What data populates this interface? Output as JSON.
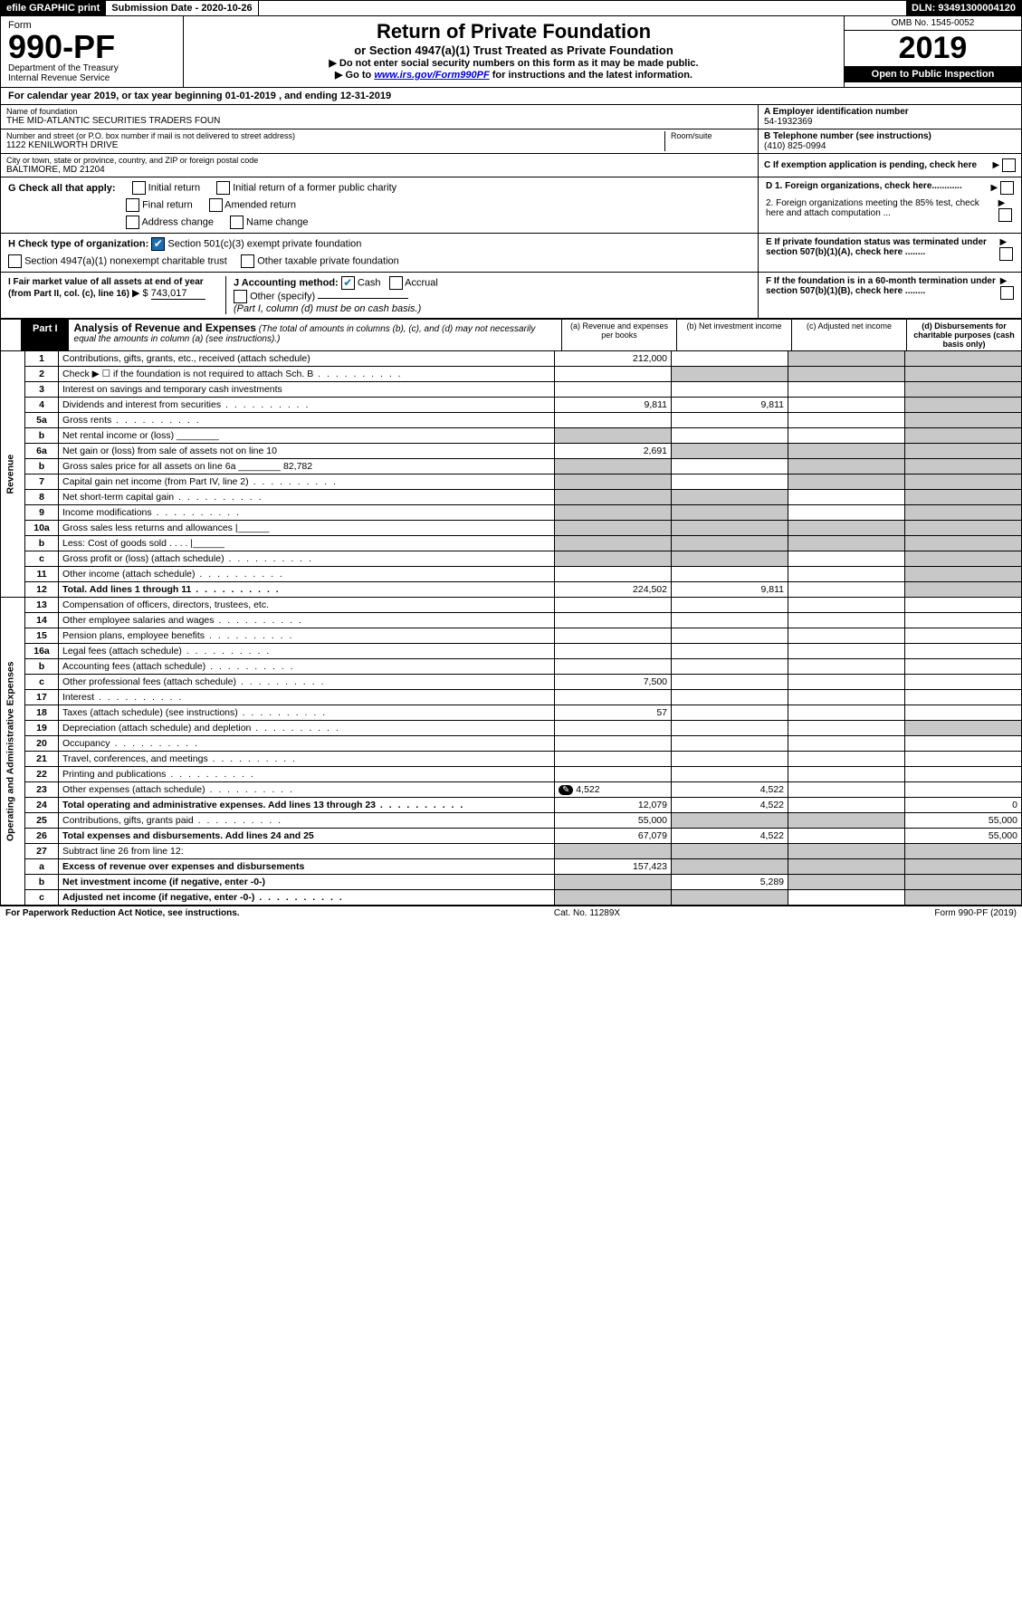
{
  "topbar": {
    "efile": "efile GRAPHIC print",
    "submission_label": "Submission Date - 2020-10-26",
    "dln": "DLN: 93491300004120"
  },
  "header": {
    "form_word": "Form",
    "form_number": "990-PF",
    "dept1": "Department of the Treasury",
    "dept2": "Internal Revenue Service",
    "title": "Return of Private Foundation",
    "subtitle": "or Section 4947(a)(1) Trust Treated as Private Foundation",
    "instr1": "▶ Do not enter social security numbers on this form as it may be made public.",
    "instr2_pre": "▶ Go to ",
    "instr2_link": "www.irs.gov/Form990PF",
    "instr2_post": " for instructions and the latest information.",
    "omb": "OMB No. 1545-0052",
    "year": "2019",
    "open_public": "Open to Public Inspection"
  },
  "calyear": "For calendar year 2019, or tax year beginning 01-01-2019               , and ending 12-31-2019",
  "info": {
    "name_label": "Name of foundation",
    "name": "THE MID-ATLANTIC SECURITIES TRADERS FOUN",
    "ein_label": "A Employer identification number",
    "ein": "54-1932369",
    "addr_label": "Number and street (or P.O. box number if mail is not delivered to street address)",
    "addr": "1122 KENILWORTH DRIVE",
    "room_label": "Room/suite",
    "phone_label": "B Telephone number (see instructions)",
    "phone": "(410) 825-0994",
    "city_label": "City or town, state or province, country, and ZIP or foreign postal code",
    "city": "BALTIMORE, MD  21204",
    "c_label": "C If exemption application is pending, check here"
  },
  "g": {
    "label": "G Check all that apply:",
    "opts": [
      "Initial return",
      "Initial return of a former public charity",
      "Final return",
      "Amended return",
      "Address change",
      "Name change"
    ]
  },
  "d": {
    "d1": "D 1. Foreign organizations, check here............",
    "d2": "2. Foreign organizations meeting the 85% test, check here and attach computation ...",
    "e": "E  If private foundation status was terminated under section 507(b)(1)(A), check here ........",
    "f": "F  If the foundation is in a 60-month termination under section 507(b)(1)(B), check here ........"
  },
  "h": {
    "label": "H Check type of organization:",
    "opt1": "Section 501(c)(3) exempt private foundation",
    "opt2": "Section 4947(a)(1) nonexempt charitable trust",
    "opt3": "Other taxable private foundation"
  },
  "i": {
    "label": "I Fair market value of all assets at end of year (from Part II, col. (c), line 16)",
    "value": "743,017"
  },
  "j": {
    "label": "J Accounting method:",
    "cash": "Cash",
    "accrual": "Accrual",
    "other": "Other (specify)",
    "note": "(Part I, column (d) must be on cash basis.)"
  },
  "part1": {
    "label": "Part I",
    "title": "Analysis of Revenue and Expenses",
    "note": "(The total of amounts in columns (b), (c), and (d) may not necessarily equal the amounts in column (a) (see instructions).)",
    "col_a": "(a)   Revenue and expenses per books",
    "col_b": "(b)   Net investment income",
    "col_c": "(c)   Adjusted net income",
    "col_d": "(d)  Disbursements for charitable purposes (cash basis only)"
  },
  "sections": {
    "revenue": "Revenue",
    "expenses": "Operating and Administrative Expenses"
  },
  "rows": [
    {
      "n": "1",
      "d": "Contributions, gifts, grants, etc., received (attach schedule)",
      "a": "212,000",
      "b": "",
      "c": "s",
      "ds": "s"
    },
    {
      "n": "2",
      "d": "Check ▶ ☐ if the foundation is not required to attach Sch. B",
      "a": "",
      "b": "s",
      "c": "s",
      "ds": "s",
      "dots": true
    },
    {
      "n": "3",
      "d": "Interest on savings and temporary cash investments",
      "a": "",
      "b": "",
      "c": "",
      "ds": "s"
    },
    {
      "n": "4",
      "d": "Dividends and interest from securities",
      "a": "9,811",
      "b": "9,811",
      "c": "",
      "ds": "s",
      "dots": true
    },
    {
      "n": "5a",
      "d": "Gross rents",
      "a": "",
      "b": "",
      "c": "",
      "ds": "s",
      "dots": true
    },
    {
      "n": "b",
      "d": "Net rental income or (loss)  ________",
      "a": "s",
      "b": "",
      "c": "",
      "ds": "s"
    },
    {
      "n": "6a",
      "d": "Net gain or (loss) from sale of assets not on line 10",
      "a": "2,691",
      "b": "s",
      "c": "s",
      "ds": "s"
    },
    {
      "n": "b",
      "d": "Gross sales price for all assets on line 6a ________ 82,782",
      "a": "s",
      "b": "",
      "c": "s",
      "ds": "s"
    },
    {
      "n": "7",
      "d": "Capital gain net income (from Part IV, line 2)",
      "a": "s",
      "b": "",
      "c": "s",
      "ds": "s",
      "dots": true
    },
    {
      "n": "8",
      "d": "Net short-term capital gain",
      "a": "s",
      "b": "s",
      "c": "",
      "ds": "s",
      "dots": true
    },
    {
      "n": "9",
      "d": "Income modifications",
      "a": "s",
      "b": "s",
      "c": "",
      "ds": "s",
      "dots": true
    },
    {
      "n": "10a",
      "d": "Gross sales less returns and allowances  |______",
      "a": "s",
      "b": "s",
      "c": "s",
      "ds": "s"
    },
    {
      "n": "b",
      "d": "Less: Cost of goods sold     .  .  .  .   |______",
      "a": "s",
      "b": "s",
      "c": "s",
      "ds": "s"
    },
    {
      "n": "c",
      "d": "Gross profit or (loss) (attach schedule)",
      "a": "s",
      "b": "s",
      "c": "",
      "ds": "s",
      "dots": true
    },
    {
      "n": "11",
      "d": "Other income (attach schedule)",
      "a": "",
      "b": "",
      "c": "",
      "ds": "s",
      "dots": true
    },
    {
      "n": "12",
      "d": "Total. Add lines 1 through 11",
      "a": "224,502",
      "b": "9,811",
      "c": "",
      "ds": "s",
      "bold": true,
      "dots": true
    },
    {
      "n": "13",
      "d": "Compensation of officers, directors, trustees, etc.",
      "a": "",
      "b": "",
      "c": "",
      "ds": ""
    },
    {
      "n": "14",
      "d": "Other employee salaries and wages",
      "a": "",
      "b": "",
      "c": "",
      "ds": "",
      "dots": true
    },
    {
      "n": "15",
      "d": "Pension plans, employee benefits",
      "a": "",
      "b": "",
      "c": "",
      "ds": "",
      "dots": true
    },
    {
      "n": "16a",
      "d": "Legal fees (attach schedule)",
      "a": "",
      "b": "",
      "c": "",
      "ds": "",
      "dots": true
    },
    {
      "n": "b",
      "d": "Accounting fees (attach schedule)",
      "a": "",
      "b": "",
      "c": "",
      "ds": "",
      "dots": true
    },
    {
      "n": "c",
      "d": "Other professional fees (attach schedule)",
      "a": "7,500",
      "b": "",
      "c": "",
      "ds": "",
      "dots": true
    },
    {
      "n": "17",
      "d": "Interest",
      "a": "",
      "b": "",
      "c": "",
      "ds": "",
      "dots": true
    },
    {
      "n": "18",
      "d": "Taxes (attach schedule) (see instructions)",
      "a": "57",
      "b": "",
      "c": "",
      "ds": "",
      "dots": true
    },
    {
      "n": "19",
      "d": "Depreciation (attach schedule) and depletion",
      "a": "",
      "b": "",
      "c": "",
      "ds": "s",
      "dots": true
    },
    {
      "n": "20",
      "d": "Occupancy",
      "a": "",
      "b": "",
      "c": "",
      "ds": "",
      "dots": true
    },
    {
      "n": "21",
      "d": "Travel, conferences, and meetings",
      "a": "",
      "b": "",
      "c": "",
      "ds": "",
      "dots": true
    },
    {
      "n": "22",
      "d": "Printing and publications",
      "a": "",
      "b": "",
      "c": "",
      "ds": "",
      "dots": true
    },
    {
      "n": "23",
      "d": "Other expenses (attach schedule)",
      "a": "4,522",
      "b": "4,522",
      "c": "",
      "ds": "",
      "pencil": true,
      "dots": true
    },
    {
      "n": "24",
      "d": "Total operating and administrative expenses. Add lines 13 through 23",
      "a": "12,079",
      "b": "4,522",
      "c": "",
      "ds": "0",
      "bold": true,
      "dots": true
    },
    {
      "n": "25",
      "d": "Contributions, gifts, grants paid",
      "a": "55,000",
      "b": "s",
      "c": "s",
      "ds": "55,000",
      "dots": true
    },
    {
      "n": "26",
      "d": "Total expenses and disbursements. Add lines 24 and 25",
      "a": "67,079",
      "b": "4,522",
      "c": "",
      "ds": "55,000",
      "bold": true
    },
    {
      "n": "27",
      "d": "Subtract line 26 from line 12:",
      "a": "s",
      "b": "s",
      "c": "s",
      "ds": "s"
    },
    {
      "n": "a",
      "d": "Excess of revenue over expenses and disbursements",
      "a": "157,423",
      "b": "s",
      "c": "s",
      "ds": "s",
      "bold": true
    },
    {
      "n": "b",
      "d": "Net investment income (if negative, enter -0-)",
      "a": "s",
      "b": "5,289",
      "c": "s",
      "ds": "s",
      "bold": true
    },
    {
      "n": "c",
      "d": "Adjusted net income (if negative, enter -0-)",
      "a": "s",
      "b": "s",
      "c": "",
      "ds": "s",
      "bold": true,
      "dots": true
    }
  ],
  "footer": {
    "left": "For Paperwork Reduction Act Notice, see instructions.",
    "center": "Cat. No. 11289X",
    "right": "Form 990-PF (2019)"
  }
}
